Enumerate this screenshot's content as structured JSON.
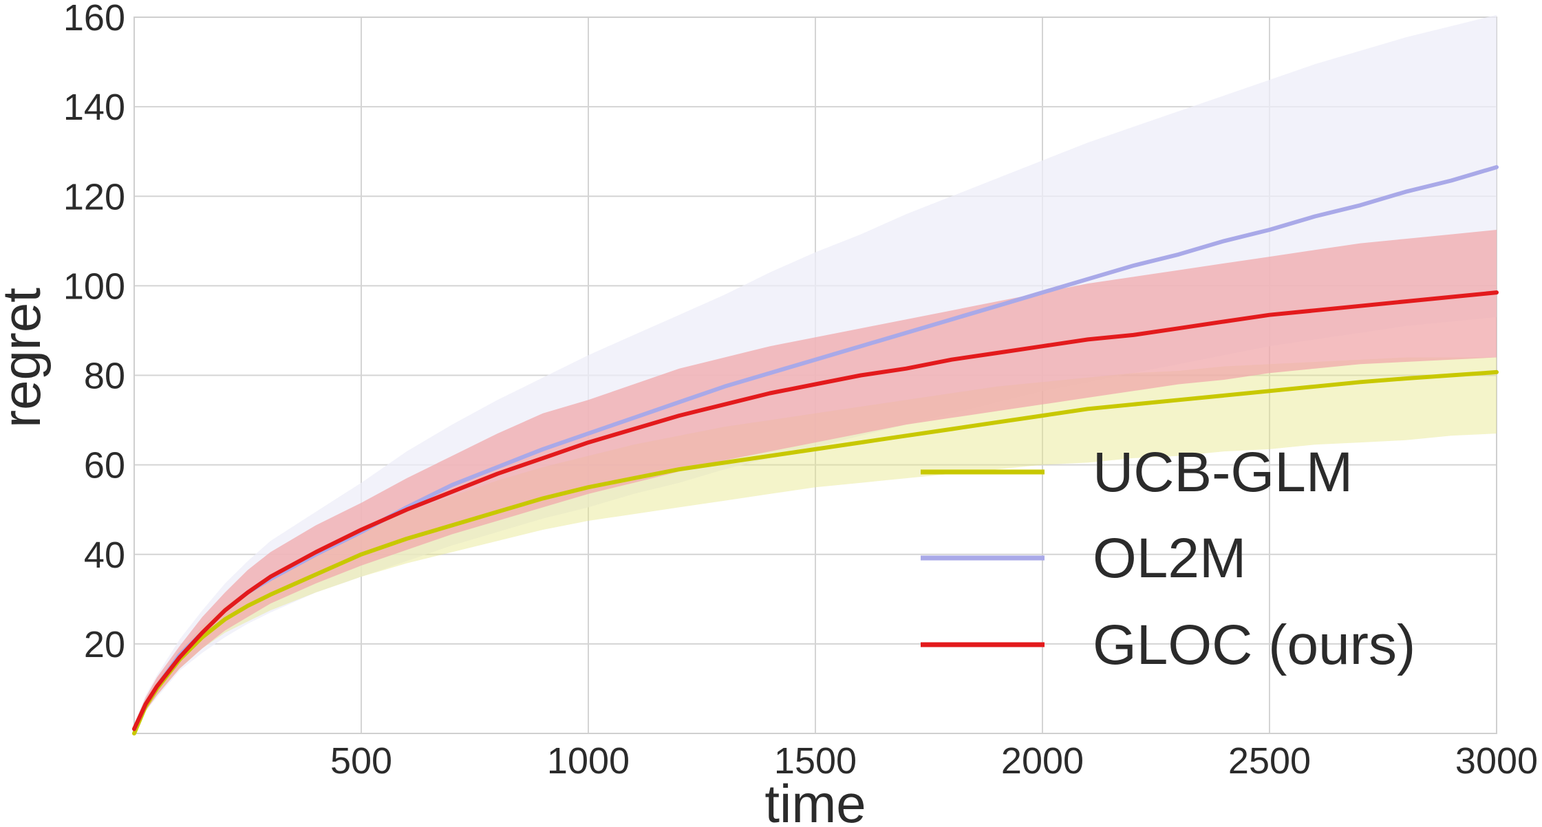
{
  "chart_data": {
    "type": "line",
    "title": "",
    "xlabel": "time",
    "ylabel": "regret",
    "xlim": [
      0,
      3000
    ],
    "ylim": [
      0,
      160
    ],
    "xticks": [
      500,
      1000,
      1500,
      2000,
      2500,
      3000
    ],
    "yticks": [
      20,
      40,
      60,
      80,
      100,
      120,
      140,
      160
    ],
    "grid": true,
    "legend_position": "lower-right",
    "x": [
      0,
      25,
      50,
      100,
      150,
      200,
      250,
      300,
      400,
      500,
      600,
      700,
      800,
      900,
      1000,
      1100,
      1200,
      1300,
      1400,
      1500,
      1600,
      1700,
      1800,
      1900,
      2000,
      2100,
      2200,
      2300,
      2400,
      2500,
      2600,
      2700,
      2800,
      2900,
      3000
    ],
    "series": [
      {
        "name": "UCB-GLM",
        "color": "#c8c800",
        "band_color": "#e6e68a",
        "values": [
          0,
          6,
          10,
          16.5,
          21.5,
          25.5,
          28.5,
          31,
          35.5,
          40,
          43.5,
          46.5,
          49.5,
          52.5,
          55,
          57,
          59,
          60.5,
          62,
          63.5,
          65,
          66.5,
          68,
          69.5,
          71,
          72.5,
          73.5,
          74.5,
          75.5,
          76.5,
          77.5,
          78.5,
          79.3,
          80,
          80.7
        ],
        "lower": [
          0,
          5,
          8.5,
          14.5,
          19,
          22.5,
          25,
          27.5,
          31.5,
          35,
          38,
          40.5,
          43,
          45.5,
          47.5,
          49,
          50.5,
          52,
          53.5,
          55,
          56,
          57,
          58,
          59,
          60,
          60.5,
          61.5,
          62,
          63,
          63.5,
          64.5,
          65,
          65.5,
          66.5,
          67
        ],
        "upper": [
          1,
          7.5,
          11.5,
          18.5,
          24,
          28.5,
          32,
          35,
          40,
          45,
          49.5,
          53,
          56.5,
          59.5,
          62,
          64.5,
          66.5,
          68.5,
          70,
          71.5,
          73,
          74.5,
          76,
          77.5,
          78.5,
          79.5,
          80.5,
          81,
          82,
          82.5,
          83,
          83.5,
          84,
          84,
          84
        ]
      },
      {
        "name": "OL2M",
        "color": "#a9a9e8",
        "band_color": "#ededf8",
        "values": [
          1,
          6.5,
          10.5,
          17.5,
          22.5,
          27.5,
          31.5,
          34.5,
          40,
          45,
          50.5,
          55.5,
          59.5,
          63.5,
          67,
          70.5,
          74,
          77.5,
          80.5,
          83.5,
          86.5,
          89.5,
          92.5,
          95.5,
          98.5,
          101.5,
          104.5,
          107,
          110,
          112.5,
          115.5,
          118,
          121,
          123.5,
          126.5
        ],
        "lower": [
          0,
          5,
          8,
          14,
          18,
          21.5,
          24.5,
          27,
          31.5,
          35,
          38.5,
          42,
          45,
          48,
          50.5,
          53.5,
          56,
          59,
          61.5,
          64,
          66.5,
          69,
          71.5,
          74,
          76.5,
          78.5,
          80.5,
          82.5,
          84.5,
          86.5,
          88,
          89.5,
          91,
          92,
          93
        ],
        "upper": [
          2,
          8.5,
          13,
          21,
          27.5,
          33.5,
          38.5,
          43,
          49.5,
          56,
          63,
          69,
          74.5,
          79.5,
          84.5,
          89,
          93.5,
          98,
          103,
          107.5,
          111.5,
          116,
          120,
          124,
          128,
          132,
          135.5,
          139,
          142.5,
          146,
          149.5,
          152.5,
          155.5,
          158,
          160.5
        ]
      },
      {
        "name": "GLOC (ours)",
        "color": "#e31a1c",
        "band_color": "#f0a8ab",
        "values": [
          1,
          6.5,
          10.5,
          17,
          22.5,
          27.5,
          31.5,
          35,
          40.5,
          45.5,
          50,
          54,
          58,
          61.5,
          65,
          68,
          71,
          73.5,
          76,
          78,
          80,
          81.5,
          83.5,
          85,
          86.5,
          88,
          89,
          90.5,
          92,
          93.5,
          94.5,
          95.5,
          96.5,
          97.5,
          98.5
        ],
        "lower": [
          0,
          5,
          8.5,
          14.5,
          19,
          23,
          26,
          29,
          33.5,
          37.5,
          41,
          44.5,
          47.5,
          50.5,
          53.5,
          56,
          58.5,
          61,
          63,
          65,
          67,
          69,
          70.5,
          72,
          73.5,
          75,
          76.5,
          78,
          79,
          80.5,
          81.5,
          82.5,
          83,
          83.5,
          84
        ],
        "upper": [
          2,
          8,
          12.5,
          19.5,
          26,
          31.5,
          36.5,
          40.5,
          46.5,
          51.5,
          57,
          62,
          67,
          71.5,
          74.5,
          78,
          81.5,
          84,
          86.5,
          88.5,
          90.5,
          92.5,
          94.5,
          96.5,
          98.5,
          100.5,
          102,
          103.5,
          105,
          106.5,
          108,
          109.5,
          110.5,
          111.5,
          112.5
        ]
      }
    ]
  }
}
